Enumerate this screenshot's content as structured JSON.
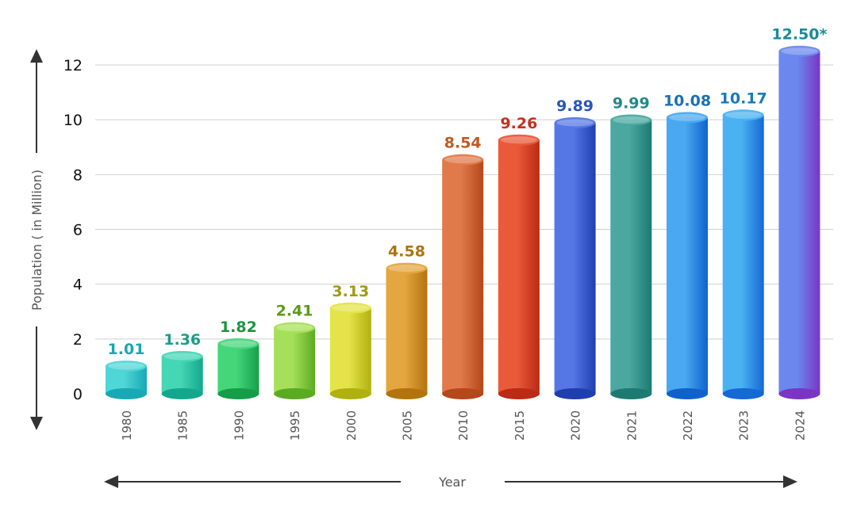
{
  "chart_data": {
    "type": "bar",
    "title": "",
    "xlabel": "Year",
    "ylabel": "Population ( in Million)",
    "ylim": [
      0,
      12.6
    ],
    "yticks": [
      0,
      2,
      4,
      6,
      8,
      10,
      12
    ],
    "grid": true,
    "categories": [
      "1980",
      "1985",
      "1990",
      "1995",
      "2000",
      "2005",
      "2010",
      "2015",
      "2020",
      "2021",
      "2022",
      "2023",
      "2024"
    ],
    "values": [
      1.01,
      1.36,
      1.82,
      2.41,
      3.13,
      4.58,
      8.54,
      9.26,
      9.89,
      9.99,
      10.08,
      10.17,
      12.5
    ],
    "value_labels": [
      "1.01",
      "1.36",
      "1.82",
      "2.41",
      "3.13",
      "4.58",
      "8.54",
      "9.26",
      "9.89",
      "9.99",
      "10.08",
      "10.17",
      "12.50*"
    ],
    "bar_colors": [
      [
        "#4fd6d6",
        "#18a9b5"
      ],
      [
        "#45d6b5",
        "#13a88d"
      ],
      [
        "#45d67a",
        "#159e49"
      ],
      [
        "#a6e05a",
        "#5aab21"
      ],
      [
        "#e4e44a",
        "#b0b010"
      ],
      [
        "#e4a63f",
        "#b3740c"
      ],
      [
        "#e07a4a",
        "#b4481a"
      ],
      [
        "#ea5a3a",
        "#bb2a14"
      ],
      [
        "#5577e6",
        "#1f3fae"
      ],
      [
        "#4aa8a0",
        "#1d7a72"
      ],
      [
        "#4aa8f0",
        "#0f62cc"
      ],
      [
        "#4ab2f0",
        "#1469d4"
      ],
      [
        "#6a88ee",
        "#7a35c4"
      ]
    ],
    "label_colors": [
      "#1aa7b0",
      "#14a08a",
      "#18963f",
      "#5a9a1c",
      "#a09a10",
      "#ad740c",
      "#c05a20",
      "#c5301c",
      "#2a55b8",
      "#1f8a88",
      "#1a6fb8",
      "#1a7ab8",
      "#1a8a9a"
    ]
  }
}
